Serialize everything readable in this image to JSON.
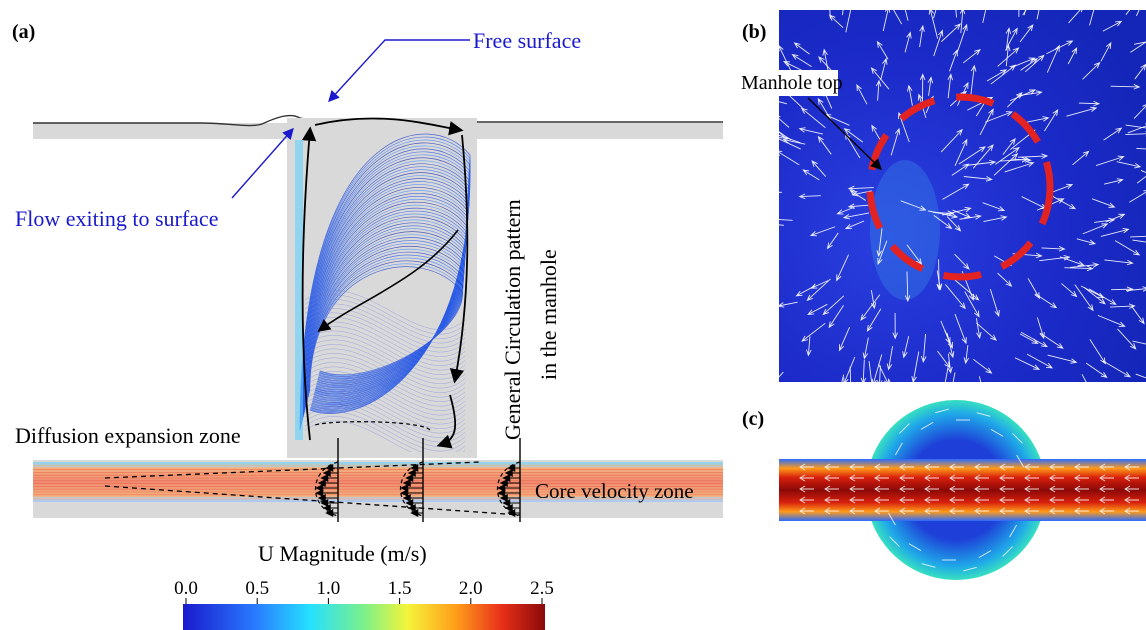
{
  "panels": {
    "a": {
      "label": "(a)"
    },
    "b": {
      "label": "(b)"
    },
    "c": {
      "label": "(c)"
    }
  },
  "annotations": {
    "free_surface": "Free surface",
    "flow_exiting": "Flow exiting to surface",
    "circulation_line1": "General Circulation pattern",
    "circulation_line2": "in the manhole",
    "diffusion_zone": "Diffusion expansion zone",
    "core_velocity": "Core velocity zone",
    "manhole_top": "Manhole top"
  },
  "colorbar": {
    "title": "U Magnitude (m/s)",
    "ticks": [
      "0.0",
      "0.5",
      "1.0",
      "1.5",
      "2.0",
      "2.5"
    ],
    "colormap": [
      "#1a1acc",
      "#2a7bff",
      "#25e0ff",
      "#7cf08a",
      "#f4f43a",
      "#ffa01a",
      "#e8301a",
      "#8a0a0a"
    ]
  },
  "colors": {
    "annotation_blue": "#1a1acc",
    "dashed_ring": "#e32222",
    "manhole_fill": "#d9d9d9",
    "streamline_blue": "#1f4fe0",
    "pipe_core": "#e8603a"
  }
}
